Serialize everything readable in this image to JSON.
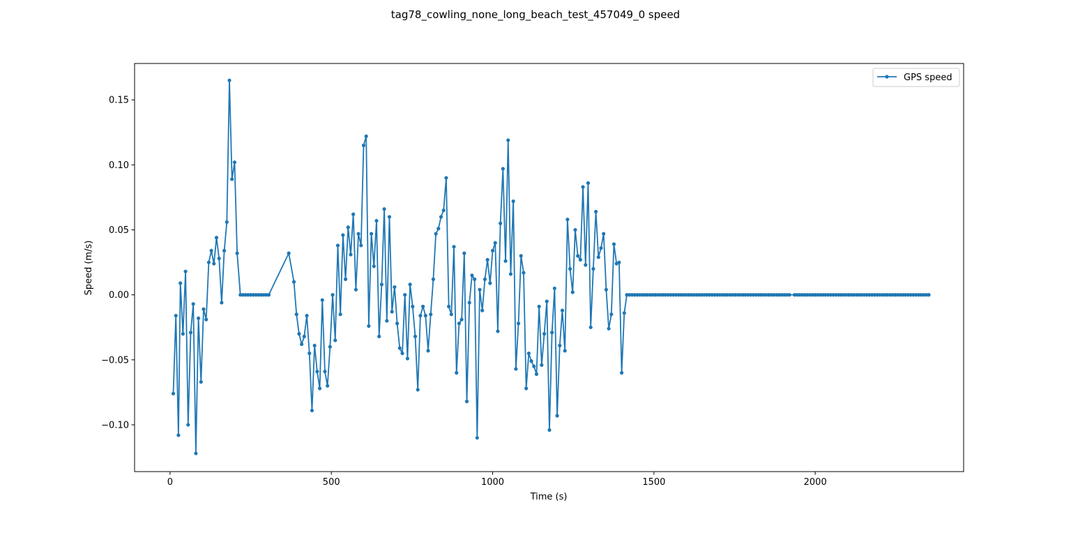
{
  "chart_data": {
    "type": "line",
    "title": "tag78_cowling_none_long_beach_test_457049_0 speed",
    "xlabel": "Time (s)",
    "ylabel": "Speed (m/s)",
    "xlim": [
      -110,
      2460
    ],
    "ylim": [
      -0.136,
      0.178
    ],
    "x_ticks": [
      0,
      500,
      1000,
      1500,
      2000
    ],
    "x_tick_labels": [
      "0",
      "500",
      "1000",
      "1500",
      "2000"
    ],
    "y_ticks": [
      -0.1,
      -0.05,
      0.0,
      0.05,
      0.1,
      0.15
    ],
    "y_tick_labels": [
      "−0.10",
      "−0.05",
      "0.00",
      "0.05",
      "0.10",
      "0.15"
    ],
    "grid": false,
    "legend_position": "upper right",
    "colors": {
      "series": "#1f77b4",
      "frame": "#000000"
    },
    "series": [
      {
        "name": "GPS speed",
        "marker": "dot",
        "x": [
          10,
          18,
          26,
          32,
          40,
          48,
          56,
          64,
          72,
          80,
          88,
          96,
          104,
          112,
          120,
          128,
          136,
          144,
          152,
          160,
          168,
          176,
          184,
          192,
          200,
          208,
          218,
          226,
          234,
          242,
          250,
          258,
          266,
          274,
          282,
          290,
          298,
          306,
          368,
          384,
          392,
          400,
          408,
          416,
          424,
          432,
          440,
          448,
          456,
          464,
          472,
          480,
          488,
          496,
          504,
          512,
          520,
          528,
          536,
          544,
          552,
          560,
          568,
          576,
          584,
          592,
          600,
          608,
          616,
          624,
          632,
          640,
          648,
          656,
          664,
          672,
          680,
          688,
          696,
          704,
          712,
          720,
          728,
          736,
          744,
          752,
          760,
          768,
          776,
          784,
          792,
          800,
          808,
          816,
          824,
          832,
          840,
          848,
          856,
          864,
          872,
          880,
          888,
          896,
          904,
          912,
          920,
          928,
          936,
          944,
          952,
          960,
          968,
          976,
          984,
          992,
          1000,
          1008,
          1016,
          1024,
          1032,
          1040,
          1048,
          1056,
          1064,
          1072,
          1080,
          1088,
          1096,
          1104,
          1112,
          1120,
          1128,
          1136,
          1144,
          1152,
          1160,
          1168,
          1176,
          1184,
          1192,
          1200,
          1208,
          1216,
          1224,
          1232,
          1240,
          1248,
          1256,
          1264,
          1272,
          1280,
          1288,
          1296,
          1304,
          1312,
          1320,
          1328,
          1336,
          1344,
          1352,
          1360,
          1368,
          1376,
          1384,
          1392,
          1400,
          1408,
          1416,
          1424,
          1432,
          1440,
          1448,
          1456,
          1464,
          1472,
          1480,
          1488,
          1496,
          1504,
          1512,
          1520,
          1528,
          1536,
          1544,
          1552,
          1560,
          1568,
          1576,
          1584,
          1592,
          1600,
          1608,
          1616,
          1624,
          1632,
          1640,
          1648,
          1656,
          1664,
          1672,
          1680,
          1688,
          1696,
          1704,
          1712,
          1720,
          1728,
          1736,
          1744,
          1752,
          1760,
          1768,
          1776,
          1784,
          1792,
          1800,
          1808,
          1816,
          1824,
          1832,
          1840,
          1848,
          1856,
          1864,
          1872,
          1880,
          1888,
          1896,
          1904,
          1912,
          1920,
          1936,
          1944,
          1952,
          1960,
          1968,
          1976,
          1984,
          1992,
          2000,
          2008,
          2016,
          2024,
          2032,
          2040,
          2048,
          2056,
          2064,
          2072,
          2080,
          2088,
          2096,
          2104,
          2112,
          2120,
          2128,
          2136,
          2144,
          2152,
          2160,
          2168,
          2176,
          2184,
          2192,
          2200,
          2208,
          2216,
          2224,
          2232,
          2240,
          2248,
          2256,
          2264,
          2272,
          2280,
          2288,
          2296,
          2304,
          2312,
          2320,
          2328,
          2336,
          2344,
          2352
        ],
        "y": [
          -0.076,
          -0.016,
          -0.108,
          0.009,
          -0.03,
          0.018,
          -0.1,
          -0.029,
          -0.007,
          -0.122,
          -0.018,
          -0.067,
          -0.011,
          -0.019,
          0.025,
          0.034,
          0.024,
          0.044,
          0.028,
          -0.006,
          0.034,
          0.056,
          0.165,
          0.089,
          0.102,
          0.032,
          0.0,
          0.0,
          0.0,
          0.0,
          0.0,
          0.0,
          0.0,
          0.0,
          0.0,
          0.0,
          0.0,
          0.0,
          0.032,
          0.01,
          -0.015,
          -0.03,
          -0.038,
          -0.032,
          -0.016,
          -0.045,
          -0.089,
          -0.039,
          -0.059,
          -0.072,
          -0.004,
          -0.059,
          -0.07,
          -0.04,
          0.0,
          -0.035,
          0.038,
          -0.015,
          0.046,
          0.012,
          0.052,
          0.031,
          0.062,
          0.004,
          0.047,
          0.038,
          0.115,
          0.122,
          -0.024,
          0.047,
          0.022,
          0.057,
          -0.032,
          0.008,
          0.066,
          -0.02,
          0.06,
          -0.013,
          0.006,
          -0.022,
          -0.041,
          -0.045,
          0.0,
          -0.049,
          0.008,
          -0.009,
          -0.032,
          -0.073,
          -0.016,
          -0.009,
          -0.016,
          -0.043,
          -0.015,
          0.012,
          0.047,
          0.051,
          0.06,
          0.065,
          0.09,
          -0.009,
          -0.015,
          0.037,
          -0.06,
          -0.022,
          -0.019,
          0.032,
          -0.082,
          -0.006,
          0.015,
          0.012,
          -0.11,
          0.004,
          -0.012,
          0.012,
          0.027,
          0.009,
          0.034,
          0.04,
          -0.028,
          0.055,
          0.097,
          0.026,
          0.119,
          0.016,
          0.072,
          -0.057,
          -0.022,
          0.03,
          0.017,
          -0.072,
          -0.045,
          -0.051,
          -0.055,
          -0.061,
          -0.009,
          -0.054,
          -0.03,
          -0.005,
          -0.104,
          -0.029,
          0.005,
          -0.093,
          -0.039,
          -0.012,
          -0.043,
          0.058,
          0.02,
          0.002,
          0.05,
          0.03,
          0.027,
          0.083,
          0.023,
          0.086,
          -0.025,
          0.02,
          0.064,
          0.029,
          0.036,
          0.047,
          0.004,
          -0.026,
          -0.015,
          0.039,
          0.024,
          0.025,
          -0.06,
          -0.014,
          0.0,
          0.0,
          0.0,
          0.0,
          0.0,
          0.0,
          0.0,
          0.0,
          0.0,
          0.0,
          0.0,
          0.0,
          0.0,
          0.0,
          0.0,
          0.0,
          0.0,
          0.0,
          0.0,
          0.0,
          0.0,
          0.0,
          0.0,
          0.0,
          0.0,
          0.0,
          0.0,
          0.0,
          0.0,
          0.0,
          0.0,
          0.0,
          0.0,
          0.0,
          0.0,
          0.0,
          0.0,
          0.0,
          0.0,
          0.0,
          0.0,
          0.0,
          0.0,
          0.0,
          0.0,
          0.0,
          0.0,
          0.0,
          0.0,
          0.0,
          0.0,
          0.0,
          0.0,
          0.0,
          0.0,
          0.0,
          0.0,
          0.0,
          0.0,
          0.0,
          0.0,
          0.0,
          0.0,
          0.0,
          0.0,
          0.0,
          0.0,
          0.0,
          0.0,
          0.0,
          0.0,
          0.0,
          0.0,
          0.0,
          0.0,
          0.0,
          0.0,
          0.0,
          0.0,
          0.0,
          0.0,
          0.0,
          0.0,
          0.0,
          0.0,
          0.0,
          0.0,
          0.0,
          0.0,
          0.0,
          0.0,
          0.0,
          0.0,
          0.0,
          0.0,
          0.0,
          0.0,
          0.0,
          0.0,
          0.0,
          0.0,
          0.0,
          0.0,
          0.0,
          0.0,
          0.0,
          0.0,
          0.0,
          0.0,
          0.0,
          0.0,
          0.0,
          0.0,
          0.0,
          0.0,
          0.0,
          0.0
        ]
      }
    ]
  }
}
